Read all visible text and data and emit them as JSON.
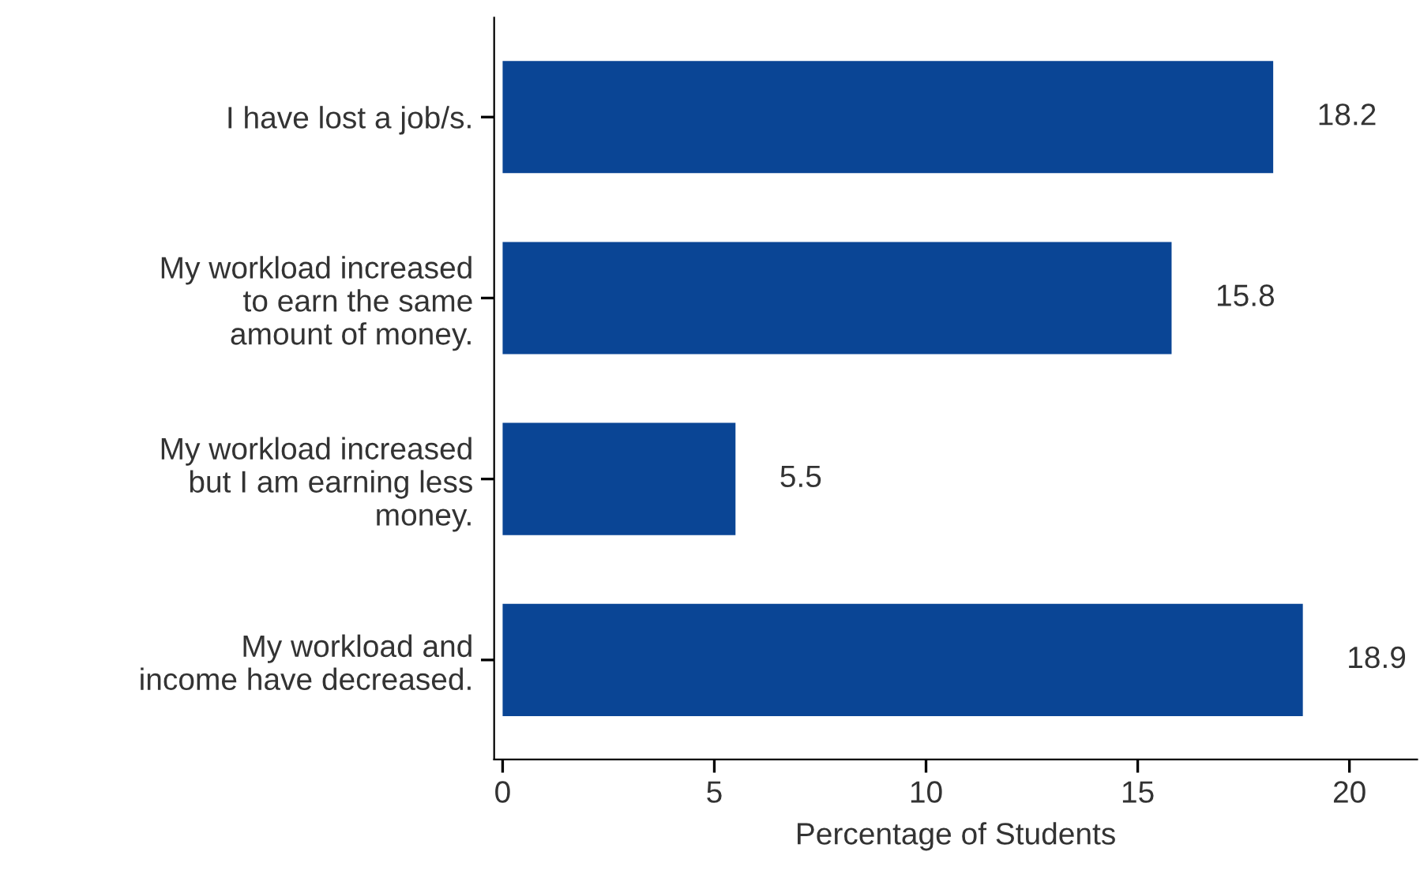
{
  "chart_data": {
    "type": "bar",
    "orientation": "horizontal",
    "categories": [
      "I have lost a job/s.",
      "My workload increased\nto earn the same\namount of money.",
      "My workload increased\nbut I am earning less\nmoney.",
      "My workload and\nincome have decreased."
    ],
    "values": [
      18.2,
      15.8,
      5.5,
      18.9
    ],
    "color": "#0a4595",
    "xlabel": "Percentage of Students",
    "xlim": [
      -0.2,
      21.6
    ],
    "xticks": [
      0,
      5,
      10,
      15,
      20
    ],
    "data_labels": true,
    "grid": false
  }
}
